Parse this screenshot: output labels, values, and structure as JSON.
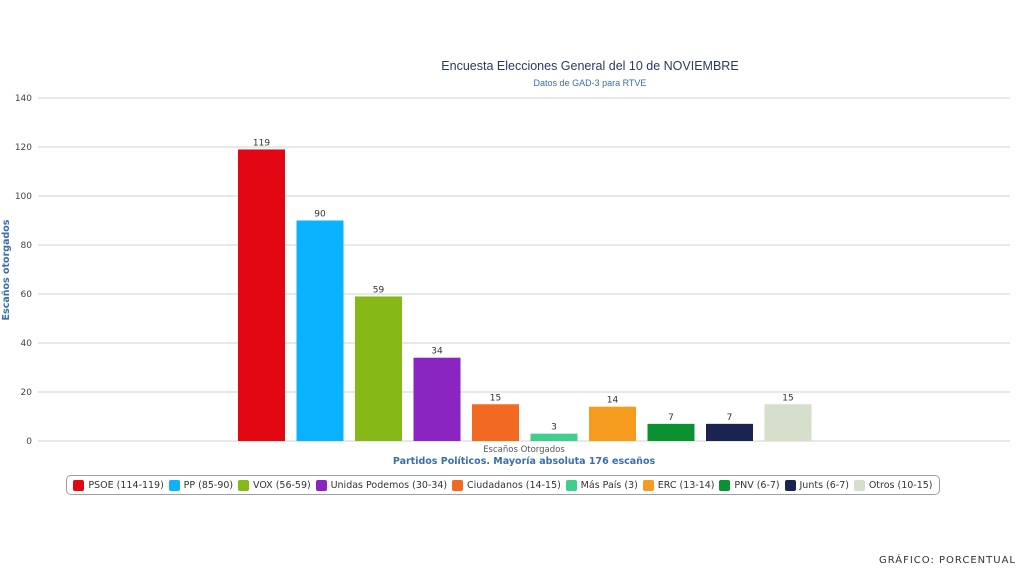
{
  "chart_data": {
    "type": "bar",
    "title": "Encuesta Elecciones General del 10 de NOVIEMBRE",
    "subtitle": "Datos de GAD-3 para RTVE",
    "ylabel": "Escaños otorgados",
    "xlabel": "Partidos Políticos. Mayoría absoluta 176 escaños",
    "series_label": "Escaños Otorgados",
    "ylim": [
      0,
      140
    ],
    "yticks": [
      0,
      20,
      40,
      60,
      80,
      100,
      120,
      140
    ],
    "grid": true,
    "legend_position": "bottom",
    "categories": [
      "PSOE (114-119)",
      "PP (85-90)",
      "VOX (56-59)",
      "Unidas Podemos (30-34)",
      "Ciudadanos (14-15)",
      "Más País (3)",
      "ERC (13-14)",
      "PNV (6-7)",
      "Junts (6-7)",
      "Otros (10-15)"
    ],
    "values": [
      119,
      90,
      59,
      34,
      15,
      3,
      14,
      7,
      7,
      15
    ],
    "colors": [
      "#e30613",
      "#0bb2ff",
      "#86b817",
      "#8b25c2",
      "#f26a22",
      "#3ecf8e",
      "#f59c1f",
      "#0a9130",
      "#1b2451",
      "#d6dfcb"
    ]
  },
  "credit": "GRÁFICO: PORCENTUAL"
}
